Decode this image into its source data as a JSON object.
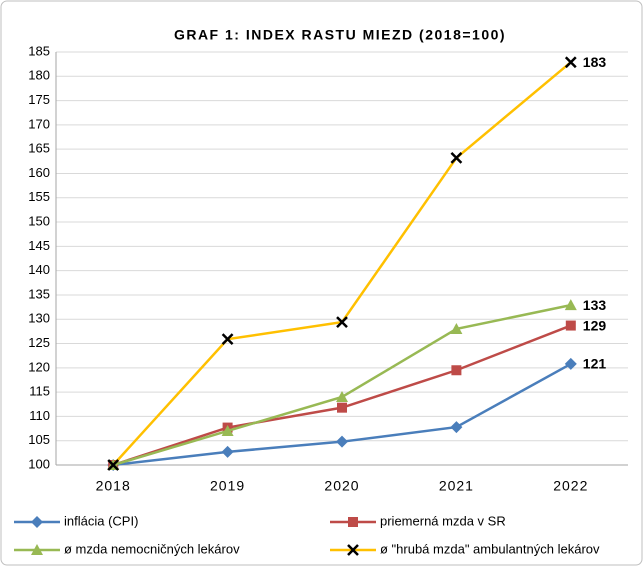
{
  "chart_data": {
    "type": "line",
    "title": "GRAF 1: INDEX RASTU MIEZD (2018=100)",
    "categories": [
      "2018",
      "2019",
      "2020",
      "2021",
      "2022"
    ],
    "series": [
      {
        "name": "inflácia (CPI)",
        "color": "#4a7ebb",
        "marker": "diamond",
        "values": [
          100,
          102.7,
          104.8,
          107.8,
          120.8
        ],
        "value_labels": [
          null,
          null,
          null,
          null,
          "121"
        ]
      },
      {
        "name": "priemerná mzda v SR",
        "color": "#be4b48",
        "marker": "square",
        "values": [
          100,
          107.7,
          111.8,
          119.5,
          128.7
        ],
        "value_labels": [
          null,
          null,
          null,
          null,
          "129"
        ]
      },
      {
        "name": "ø mzda nemocničných lekárov",
        "color": "#98b954",
        "marker": "triangle",
        "values": [
          100,
          107,
          114,
          128,
          132.9
        ],
        "value_labels": [
          null,
          null,
          null,
          null,
          "133"
        ]
      },
      {
        "name": "ø \"hrubá mzda\" ambulantných lekárov",
        "color": "#ffc000",
        "marker": "x",
        "values": [
          100,
          125.9,
          129.4,
          163.2,
          182.9
        ],
        "value_labels": [
          null,
          null,
          null,
          null,
          "183"
        ]
      }
    ],
    "ylim": [
      100,
      185
    ],
    "yticks": [
      100,
      105,
      110,
      115,
      120,
      125,
      130,
      135,
      140,
      145,
      150,
      155,
      160,
      165,
      170,
      175,
      180,
      185
    ],
    "grid": true
  }
}
